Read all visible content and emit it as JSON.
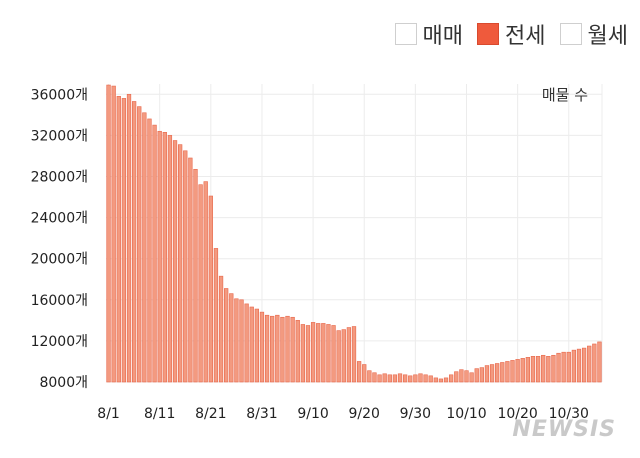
{
  "legend": {
    "items": [
      {
        "label": "매매",
        "active": false
      },
      {
        "label": "전세",
        "active": true
      },
      {
        "label": "월세",
        "active": false
      }
    ]
  },
  "watermark": "NEWSIS",
  "colors": {
    "bar_fill": "#f39a80",
    "bar_stroke": "#e8674a",
    "active_swatch": "#ef5a3c",
    "grid": "#ececec"
  },
  "chart_data": {
    "type": "bar",
    "title": "",
    "xlabel": "",
    "ylabel": "매물 수",
    "ylim": [
      8000,
      37000
    ],
    "yticks": [
      "8000개",
      "12000개",
      "16000개",
      "20000개",
      "24000개",
      "28000개",
      "32000개",
      "36000개"
    ],
    "ytick_values": [
      8000,
      12000,
      16000,
      20000,
      24000,
      28000,
      32000,
      36000
    ],
    "xticks": [
      "8/1",
      "8/11",
      "8/21",
      "8/31",
      "9/10",
      "9/20",
      "9/30",
      "10/10",
      "10/20",
      "10/30"
    ],
    "xtick_day_index": [
      0,
      10,
      20,
      30,
      40,
      50,
      60,
      70,
      80,
      90
    ],
    "grid": true,
    "legend_position": "top-right",
    "series": [
      {
        "name": "전세",
        "values": [
          36900,
          36800,
          35800,
          35600,
          36000,
          35300,
          34800,
          34200,
          33600,
          33000,
          32400,
          32300,
          32000,
          31500,
          31100,
          30500,
          29800,
          28700,
          27200,
          27500,
          26100,
          21000,
          18300,
          17100,
          16600,
          16100,
          16000,
          15600,
          15300,
          15100,
          14800,
          14500,
          14400,
          14500,
          14300,
          14400,
          14300,
          14000,
          13600,
          13500,
          13800,
          13700,
          13700,
          13600,
          13500,
          13000,
          13100,
          13300,
          13400,
          10000,
          9700,
          9100,
          8900,
          8700,
          8800,
          8700,
          8700,
          8800,
          8700,
          8600,
          8700,
          8800,
          8700,
          8600,
          8400,
          8300,
          8400,
          8700,
          9000,
          9200,
          9100,
          8900,
          9300,
          9400,
          9600,
          9700,
          9800,
          9900,
          10000,
          10100,
          10200,
          10300,
          10400,
          10500,
          10500,
          10600,
          10500,
          10600,
          10800,
          10900,
          10900,
          11100,
          11200,
          11300,
          11500,
          11700,
          11900
        ]
      }
    ]
  }
}
